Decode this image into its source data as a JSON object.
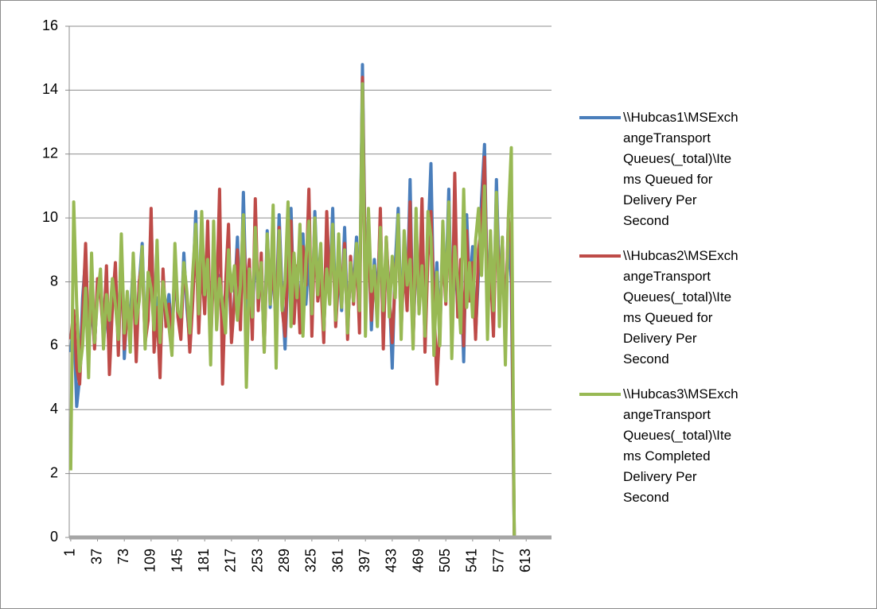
{
  "chart_data": {
    "type": "line",
    "categories": [
      "1",
      null,
      null,
      null,
      null,
      null,
      null,
      null,
      null,
      "37",
      null,
      null,
      null,
      null,
      null,
      null,
      null,
      null,
      "73",
      null,
      null,
      null,
      null,
      null,
      null,
      null,
      null,
      "109",
      null,
      null,
      null,
      null,
      null,
      null,
      null,
      null,
      "145",
      null,
      null,
      null,
      null,
      null,
      null,
      null,
      null,
      "181",
      null,
      null,
      null,
      null,
      null,
      null,
      null,
      null,
      "217",
      null,
      null,
      null,
      null,
      null,
      null,
      null,
      null,
      "253",
      null,
      null,
      null,
      null,
      null,
      null,
      null,
      null,
      "289",
      null,
      null,
      null,
      null,
      null,
      null,
      null,
      null,
      "325",
      null,
      null,
      null,
      null,
      null,
      null,
      null,
      null,
      "361",
      null,
      null,
      null,
      null,
      null,
      null,
      null,
      null,
      "397",
      null,
      null,
      null,
      null,
      null,
      null,
      null,
      null,
      "433",
      null,
      null,
      null,
      null,
      null,
      null,
      null,
      null,
      "469",
      null,
      null,
      null,
      null,
      null,
      null,
      null,
      null,
      "505",
      null,
      null,
      null,
      null,
      null,
      null,
      null,
      null,
      "541",
      null,
      null,
      null,
      null,
      null,
      null,
      null,
      null,
      "577",
      null,
      null,
      null,
      null,
      null,
      null,
      null,
      null,
      "613",
      null,
      null,
      null,
      null,
      null,
      null,
      null,
      null
    ],
    "series": [
      {
        "name": "\\\\Hubcas1\\MSExchangeTransport Queues(_total)\\Items Queued for Delivery Per Second",
        "color": "#4a7ebb",
        "values": [
          5.8,
          6.9,
          4.1,
          5.0,
          7.5,
          8.8,
          6.2,
          7.3,
          6.0,
          7.8,
          8.1,
          6.5,
          7.0,
          5.9,
          7.7,
          8.2,
          6.4,
          9.1,
          5.6,
          7.4,
          6.8,
          8.6,
          6.1,
          7.9,
          9.2,
          6.3,
          7.1,
          9.9,
          6.6,
          7.5,
          5.4,
          8.0,
          6.9,
          7.6,
          6.2,
          8.3,
          7.0,
          6.5,
          8.9,
          7.2,
          6.1,
          7.8,
          10.2,
          6.7,
          9.0,
          7.4,
          8.6,
          6.3,
          9.1,
          7.0,
          8.2,
          6.6,
          7.7,
          8.9,
          6.2,
          7.5,
          9.4,
          6.8,
          10.8,
          7.1,
          8.0,
          6.5,
          9.3,
          7.4,
          8.4,
          6.1,
          9.6,
          7.2,
          8.8,
          6.9,
          10.1,
          7.6,
          5.9,
          8.5,
          10.3,
          7.0,
          8.1,
          6.8,
          9.5,
          7.3,
          8.9,
          6.7,
          10.2,
          7.8,
          8.4,
          6.4,
          9.2,
          7.5,
          10.3,
          6.9,
          8.6,
          7.1,
          9.7,
          6.6,
          8.3,
          7.9,
          9.4,
          6.9,
          14.8,
          8.2,
          9.8,
          6.5,
          8.7,
          7.3,
          10.0,
          6.2,
          9.1,
          7.8,
          5.3,
          8.5,
          10.3,
          6.8,
          9.0,
          7.4,
          11.2,
          6.2,
          8.8,
          7.6,
          10.1,
          6.4,
          9.3,
          11.7,
          7.0,
          8.6,
          6.3,
          9.5,
          7.8,
          10.9,
          6.6,
          9.0,
          7.2,
          8.4,
          5.5,
          10.1,
          7.7,
          9.1,
          6.4,
          8.3,
          10.6,
          12.3,
          7.4,
          9.2,
          6.6,
          11.2,
          7.9,
          8.8,
          6.8,
          9.6,
          8.0,
          0,
          0,
          0,
          0,
          0,
          0,
          0,
          0,
          0,
          0,
          0,
          0,
          0
        ]
      },
      {
        "name": "\\\\Hubcas2\\MSExchangeTransport Queues(_total)\\Items Queued for Delivery Per Second",
        "color": "#be4b48",
        "values": [
          6.2,
          7.1,
          5.3,
          4.8,
          6.9,
          9.2,
          6.0,
          7.8,
          5.9,
          8.1,
          7.6,
          6.3,
          8.5,
          5.1,
          7.2,
          8.6,
          5.7,
          8.8,
          5.9,
          7.0,
          6.4,
          8.2,
          5.5,
          8.0,
          8.7,
          6.1,
          6.8,
          10.3,
          5.8,
          7.2,
          5.0,
          8.4,
          6.6,
          7.3,
          5.9,
          8.8,
          6.9,
          6.2,
          8.5,
          7.6,
          5.8,
          7.4,
          9.6,
          6.4,
          8.7,
          7.0,
          9.9,
          6.0,
          8.4,
          7.3,
          10.9,
          4.8,
          7.9,
          9.8,
          6.1,
          7.4,
          9.0,
          6.5,
          9.8,
          7.5,
          8.7,
          6.2,
          10.6,
          7.1,
          8.9,
          5.8,
          9.2,
          7.6,
          8.3,
          6.6,
          9.7,
          7.2,
          6.3,
          8.8,
          9.9,
          6.7,
          8.5,
          6.4,
          9.1,
          7.9,
          10.9,
          6.3,
          9.6,
          7.4,
          8.1,
          6.1,
          10.2,
          7.8,
          9.4,
          6.6,
          8.2,
          7.5,
          9.2,
          6.2,
          8.8,
          7.3,
          9.0,
          6.4,
          14.4,
          7.9,
          9.5,
          6.8,
          8.3,
          7.0,
          10.3,
          5.9,
          9.4,
          7.5,
          6.1,
          8.1,
          9.6,
          6.5,
          8.6,
          7.1,
          10.5,
          6.0,
          9.3,
          7.2,
          10.6,
          5.8,
          8.8,
          10.2,
          7.4,
          4.8,
          6.7,
          9.0,
          7.3,
          10.2,
          6.1,
          11.4,
          6.9,
          8.7,
          6.0,
          9.6,
          7.4,
          8.6,
          6.2,
          9.0,
          9.8,
          11.9,
          7.0,
          8.4,
          6.3,
          10.6,
          7.6,
          9.3,
          6.5,
          10.0,
          9.2,
          0,
          0,
          0,
          0,
          0,
          0,
          0,
          0,
          0,
          0,
          0,
          0,
          0
        ]
      },
      {
        "name": "\\\\Hubcas3\\MSExchangeTransport Queues(_total)\\Items Completed Delivery Per Second",
        "color": "#98b954",
        "values": [
          2.1,
          10.5,
          7.3,
          5.2,
          6.0,
          7.8,
          5.0,
          8.9,
          6.1,
          7.5,
          8.4,
          5.9,
          7.6,
          6.8,
          8.1,
          7.3,
          6.2,
          9.5,
          6.4,
          7.7,
          5.8,
          8.9,
          6.7,
          7.4,
          9.1,
          5.9,
          8.3,
          7.8,
          6.5,
          9.3,
          6.1,
          8.0,
          7.2,
          6.6,
          5.7,
          9.2,
          7.1,
          6.9,
          8.6,
          7.7,
          6.4,
          8.3,
          9.8,
          7.0,
          10.2,
          7.6,
          8.7,
          5.4,
          9.9,
          6.5,
          8.1,
          7.3,
          6.4,
          9.0,
          7.7,
          8.5,
          6.8,
          7.9,
          10.1,
          4.7,
          8.4,
          6.9,
          9.7,
          7.5,
          8.6,
          5.8,
          9.5,
          7.3,
          10.4,
          5.3,
          9.6,
          7.1,
          8.0,
          10.5,
          6.6,
          8.9,
          7.5,
          9.8,
          6.3,
          8.7,
          9.9,
          7.0,
          10.0,
          7.6,
          9.2,
          6.5,
          8.4,
          7.3,
          9.8,
          6.8,
          9.5,
          7.2,
          9.0,
          6.4,
          8.6,
          7.4,
          9.2,
          7.1,
          14.2,
          6.3,
          10.3,
          7.7,
          8.5,
          6.6,
          9.7,
          7.1,
          9.4,
          6.9,
          8.8,
          7.5,
          10.1,
          6.2,
          9.6,
          7.9,
          8.7,
          5.9,
          10.3,
          7.0,
          8.5,
          6.3,
          10.2,
          9.4,
          5.7,
          8.3,
          6.0,
          9.9,
          7.4,
          10.5,
          5.6,
          9.1,
          8.0,
          6.4,
          10.9,
          7.2,
          8.6,
          6.9,
          9.3,
          10.3,
          8.2,
          11.0,
          6.2,
          9.6,
          7.1,
          10.8,
          6.6,
          9.4,
          5.4,
          10.0,
          12.2,
          0,
          0,
          0,
          0,
          0,
          0,
          0,
          0,
          0,
          0,
          0,
          0,
          0
        ]
      }
    ],
    "ylim": [
      0,
      16
    ],
    "yticks": [
      0,
      2,
      4,
      6,
      8,
      10,
      12,
      14,
      16
    ],
    "grid": true,
    "legend": "right"
  }
}
